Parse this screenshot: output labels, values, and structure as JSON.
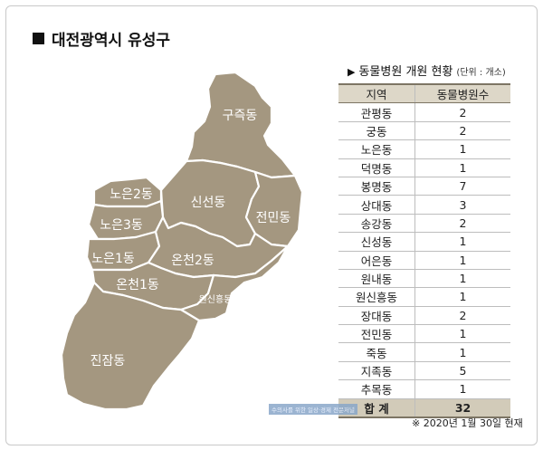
{
  "title": "대전광역시 유성구",
  "map": {
    "regions": [
      {
        "id": "gujeuk",
        "label": "구즉동"
      },
      {
        "id": "sinseong",
        "label": "신선동"
      },
      {
        "id": "jeonmin",
        "label": "전민동"
      },
      {
        "id": "noeun2",
        "label": "노은2동"
      },
      {
        "id": "noeun3",
        "label": "노은3동"
      },
      {
        "id": "noeun1",
        "label": "노은1동"
      },
      {
        "id": "oncheon2",
        "label": "온천2동"
      },
      {
        "id": "oncheon1",
        "label": "온천1동"
      },
      {
        "id": "wonsinheung",
        "label": "원신흥동"
      },
      {
        "id": "jinjam",
        "label": "진잠동"
      }
    ],
    "fill_color": "#a49780"
  },
  "table": {
    "heading": "동물병원 개원 현황",
    "unit": "(단위 : 개소)",
    "columns": [
      "지역",
      "동물병원수"
    ],
    "rows": [
      {
        "region": "관평동",
        "count": "2"
      },
      {
        "region": "궁동",
        "count": "2"
      },
      {
        "region": "노은동",
        "count": "1"
      },
      {
        "region": "덕명동",
        "count": "1"
      },
      {
        "region": "봉명동",
        "count": "7"
      },
      {
        "region": "상대동",
        "count": "3"
      },
      {
        "region": "송강동",
        "count": "2"
      },
      {
        "region": "신성동",
        "count": "1"
      },
      {
        "region": "어은동",
        "count": "1"
      },
      {
        "region": "원내동",
        "count": "1"
      },
      {
        "region": "원신흥동",
        "count": "1"
      },
      {
        "region": "장대동",
        "count": "2"
      },
      {
        "region": "전민동",
        "count": "1"
      },
      {
        "region": "죽동",
        "count": "1"
      },
      {
        "region": "지족동",
        "count": "5"
      },
      {
        "region": "추목동",
        "count": "1"
      }
    ],
    "total": {
      "label": "합  계",
      "count": "32"
    },
    "header_color": "#ddd7c8",
    "total_color": "#d2cbb9"
  },
  "footnote": "※ 2020년 1월 30일 현재",
  "watermark": "수의사를 위한 일상·경제 전문저널"
}
